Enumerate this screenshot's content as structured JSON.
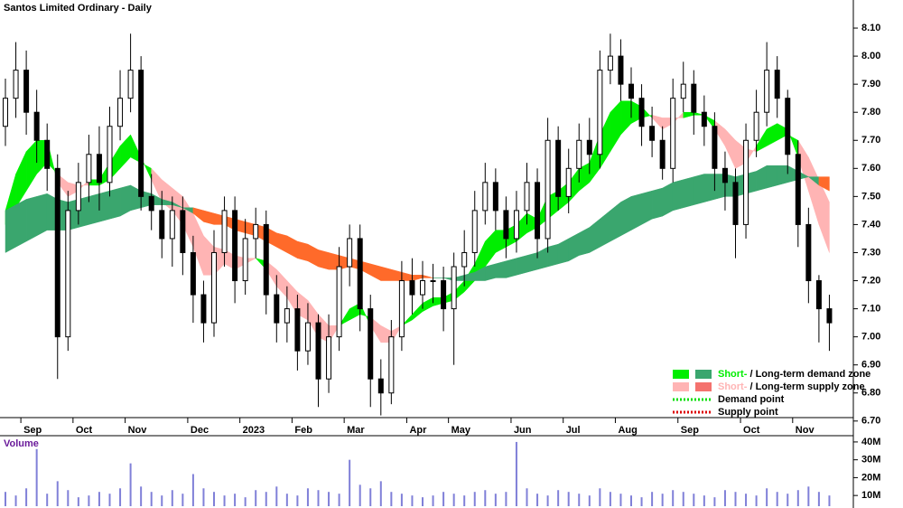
{
  "chart_data": {
    "type": "candlestick",
    "title": "Santos Limited Ordinary - Daily",
    "categories": [
      null,
      null,
      "Sep",
      null,
      null,
      null,
      null,
      "Oct",
      null,
      null,
      null,
      null,
      "Nov",
      null,
      null,
      null,
      null,
      null,
      "Dec",
      null,
      null,
      null,
      null,
      "2023",
      null,
      null,
      null,
      null,
      "Feb",
      null,
      null,
      null,
      null,
      "Mar",
      null,
      null,
      null,
      null,
      null,
      "Apr",
      null,
      null,
      null,
      "May",
      null,
      null,
      null,
      null,
      null,
      "Jun",
      null,
      null,
      null,
      null,
      "Jul",
      null,
      null,
      null,
      null,
      "Aug",
      null,
      null,
      null,
      null,
      null,
      "Sep",
      null,
      null,
      null,
      null,
      null,
      "Oct",
      null,
      null,
      null,
      null,
      "Nov",
      null,
      null,
      null
    ],
    "open": [
      7.75,
      7.85,
      7.95,
      7.8,
      7.7,
      7.6,
      7.0,
      7.45,
      7.55,
      7.65,
      7.55,
      7.75,
      7.85,
      7.95,
      7.5,
      7.45,
      7.35,
      7.45,
      7.3,
      7.15,
      7.05,
      7.3,
      7.45,
      7.2,
      7.35,
      7.4,
      7.15,
      7.05,
      7.1,
      6.95,
      7.05,
      6.85,
      7.0,
      7.25,
      7.35,
      7.1,
      6.85,
      6.8,
      7.0,
      7.2,
      7.15,
      7.2,
      7.2,
      7.1,
      7.25,
      7.3,
      7.45,
      7.55,
      7.45,
      7.35,
      7.45,
      7.55,
      7.35,
      7.7,
      7.5,
      7.6,
      7.7,
      7.65,
      7.95,
      8.0,
      7.9,
      7.85,
      7.75,
      7.7,
      7.6,
      7.85,
      7.9,
      7.8,
      7.75,
      7.6,
      7.55,
      7.4,
      7.7,
      7.8,
      7.95,
      7.85,
      7.65,
      7.4,
      7.2,
      7.1
    ],
    "high": [
      7.92,
      8.05,
      8.02,
      7.88,
      7.76,
      7.65,
      7.52,
      7.62,
      7.72,
      7.75,
      7.82,
      7.95,
      8.08,
      8.0,
      7.58,
      7.52,
      7.5,
      7.5,
      7.36,
      7.2,
      7.38,
      7.5,
      7.5,
      7.42,
      7.46,
      7.45,
      7.22,
      7.18,
      7.15,
      7.12,
      7.08,
      7.08,
      7.32,
      7.4,
      7.4,
      7.15,
      6.92,
      7.06,
      7.27,
      7.28,
      7.27,
      7.26,
      7.25,
      7.3,
      7.38,
      7.52,
      7.62,
      7.6,
      7.5,
      7.52,
      7.62,
      7.6,
      7.78,
      7.75,
      7.67,
      7.76,
      7.78,
      8.02,
      8.08,
      8.06,
      7.96,
      7.9,
      7.82,
      7.75,
      7.92,
      7.98,
      7.95,
      7.86,
      7.8,
      7.66,
      7.6,
      7.76,
      7.88,
      8.05,
      8.0,
      7.88,
      7.7,
      7.46,
      7.22,
      7.15
    ],
    "low": [
      7.68,
      7.78,
      7.72,
      7.62,
      7.52,
      6.85,
      6.95,
      7.4,
      7.48,
      7.45,
      7.5,
      7.7,
      7.8,
      7.45,
      7.38,
      7.28,
      7.25,
      7.22,
      7.05,
      6.98,
      7.0,
      7.25,
      7.12,
      7.15,
      7.28,
      7.08,
      6.98,
      6.98,
      6.88,
      6.9,
      6.75,
      6.8,
      6.95,
      7.18,
      7.02,
      6.75,
      6.72,
      6.76,
      6.95,
      7.08,
      7.1,
      7.12,
      7.02,
      6.9,
      7.18,
      7.25,
      7.4,
      7.38,
      7.28,
      7.3,
      7.4,
      7.28,
      7.3,
      7.45,
      7.44,
      7.55,
      7.58,
      7.6,
      7.9,
      7.84,
      7.78,
      7.68,
      7.64,
      7.56,
      7.55,
      7.8,
      7.72,
      7.68,
      7.52,
      7.45,
      7.28,
      7.35,
      7.64,
      7.75,
      7.78,
      7.58,
      7.32,
      7.12,
      6.98,
      6.95
    ],
    "close": [
      7.85,
      7.95,
      7.8,
      7.7,
      7.6,
      7.0,
      7.45,
      7.55,
      7.65,
      7.55,
      7.75,
      7.85,
      7.95,
      7.5,
      7.45,
      7.35,
      7.45,
      7.3,
      7.15,
      7.05,
      7.3,
      7.45,
      7.2,
      7.35,
      7.4,
      7.15,
      7.05,
      7.1,
      6.95,
      7.05,
      6.85,
      7.0,
      7.25,
      7.35,
      7.1,
      6.85,
      6.8,
      7.0,
      7.2,
      7.15,
      7.2,
      7.2,
      7.1,
      7.25,
      7.3,
      7.45,
      7.55,
      7.45,
      7.35,
      7.45,
      7.55,
      7.35,
      7.7,
      7.5,
      7.6,
      7.7,
      7.65,
      7.95,
      8.0,
      7.9,
      7.85,
      7.75,
      7.7,
      7.6,
      7.85,
      7.9,
      7.8,
      7.75,
      7.6,
      7.55,
      7.4,
      7.7,
      7.8,
      7.95,
      7.85,
      7.65,
      7.4,
      7.2,
      7.1,
      7.05
    ],
    "zones": [
      {
        "fast": [
          7.45,
          7.58,
          7.66,
          7.7,
          7.7,
          7.55,
          7.5,
          7.52,
          7.56,
          7.56,
          7.62,
          7.68,
          7.72,
          7.64,
          7.56,
          7.48,
          7.45,
          7.4,
          7.32,
          7.22,
          7.22,
          7.26,
          7.24,
          7.26,
          7.28,
          7.24,
          7.18,
          7.14,
          7.08,
          7.06,
          7.0,
          6.98,
          7.04,
          7.1,
          7.12,
          7.04,
          6.98,
          6.98,
          7.04,
          7.08,
          7.12,
          7.14,
          7.14,
          7.16,
          7.2,
          7.26,
          7.34,
          7.38,
          7.38,
          7.4,
          7.44,
          7.42,
          7.5,
          7.52,
          7.55,
          7.6,
          7.62,
          7.72,
          7.8,
          7.84,
          7.84,
          7.82,
          7.78,
          7.74,
          7.76,
          7.8,
          7.8,
          7.79,
          7.74,
          7.68,
          7.6,
          7.62,
          7.68,
          7.74,
          7.76,
          7.74,
          7.64,
          7.52,
          7.4,
          7.3
        ],
        "slow": [
          7.4,
          7.46,
          7.52,
          7.58,
          7.62,
          7.58,
          7.55,
          7.54,
          7.54,
          7.54,
          7.56,
          7.6,
          7.64,
          7.62,
          7.6,
          7.56,
          7.53,
          7.5,
          7.44,
          7.36,
          7.32,
          7.31,
          7.29,
          7.28,
          7.28,
          7.27,
          7.24,
          7.2,
          7.16,
          7.13,
          7.08,
          7.04,
          7.04,
          7.06,
          7.08,
          7.07,
          7.04,
          7.02,
          7.04,
          7.06,
          7.09,
          7.11,
          7.12,
          7.13,
          7.16,
          7.2,
          7.25,
          7.3,
          7.32,
          7.34,
          7.37,
          7.39,
          7.42,
          7.45,
          7.48,
          7.52,
          7.55,
          7.6,
          7.66,
          7.72,
          7.76,
          7.78,
          7.79,
          7.78,
          7.78,
          7.78,
          7.79,
          7.79,
          7.77,
          7.74,
          7.7,
          7.67,
          7.66,
          7.68,
          7.7,
          7.72,
          7.7,
          7.64,
          7.56,
          7.48
        ],
        "demand_color": "#00ee00",
        "supply_color": "#ffb4b4"
      },
      {
        "fast": [
          7.45,
          7.47,
          7.49,
          7.5,
          7.51,
          7.49,
          7.48,
          7.49,
          7.5,
          7.51,
          7.52,
          7.53,
          7.54,
          7.52,
          7.51,
          7.49,
          7.48,
          7.46,
          7.44,
          7.41,
          7.4,
          7.4,
          7.38,
          7.37,
          7.36,
          7.34,
          7.32,
          7.3,
          7.28,
          7.27,
          7.25,
          7.24,
          7.24,
          7.25,
          7.24,
          7.22,
          7.2,
          7.2,
          7.2,
          7.2,
          7.21,
          7.21,
          7.21,
          7.21,
          7.22,
          7.23,
          7.25,
          7.26,
          7.27,
          7.28,
          7.29,
          7.3,
          7.32,
          7.33,
          7.35,
          7.37,
          7.39,
          7.42,
          7.45,
          7.48,
          7.5,
          7.51,
          7.52,
          7.53,
          7.55,
          7.56,
          7.57,
          7.58,
          7.58,
          7.58,
          7.57,
          7.58,
          7.59,
          7.61,
          7.61,
          7.61,
          7.59,
          7.57,
          7.54,
          7.52
        ],
        "slow": [
          7.3,
          7.32,
          7.34,
          7.36,
          7.38,
          7.38,
          7.38,
          7.39,
          7.4,
          7.41,
          7.42,
          7.43,
          7.45,
          7.46,
          7.47,
          7.47,
          7.47,
          7.46,
          7.46,
          7.45,
          7.44,
          7.43,
          7.42,
          7.41,
          7.4,
          7.39,
          7.37,
          7.36,
          7.34,
          7.33,
          7.31,
          7.3,
          7.29,
          7.28,
          7.27,
          7.26,
          7.25,
          7.24,
          7.23,
          7.22,
          7.22,
          7.21,
          7.21,
          7.2,
          7.2,
          7.2,
          7.2,
          7.21,
          7.21,
          7.22,
          7.23,
          7.24,
          7.25,
          7.26,
          7.27,
          7.29,
          7.3,
          7.32,
          7.34,
          7.36,
          7.38,
          7.4,
          7.42,
          7.43,
          7.45,
          7.46,
          7.47,
          7.48,
          7.49,
          7.5,
          7.5,
          7.51,
          7.52,
          7.53,
          7.54,
          7.55,
          7.56,
          7.57,
          7.57,
          7.57
        ],
        "demand_color": "#3aa66e",
        "supply_color": "#ff6a2a"
      }
    ],
    "ylim": [
      6.68,
      8.2
    ],
    "yticks": [
      {
        "value": 6.7,
        "label": "6.70"
      },
      {
        "value": 6.8,
        "label": "6.80"
      },
      {
        "value": 6.9,
        "label": "6.90"
      },
      {
        "value": 7.0,
        "label": "7.00"
      },
      {
        "value": 7.1,
        "label": "7.10"
      },
      {
        "value": 7.2,
        "label": "7.20"
      },
      {
        "value": 7.3,
        "label": "7.30"
      },
      {
        "value": 7.4,
        "label": "7.40"
      },
      {
        "value": 7.5,
        "label": "7.50"
      },
      {
        "value": 7.6,
        "label": "7.60"
      },
      {
        "value": 7.7,
        "label": "7.70"
      },
      {
        "value": 7.8,
        "label": "7.80"
      },
      {
        "value": 7.9,
        "label": "7.90"
      },
      {
        "value": 8.0,
        "label": "8.00"
      },
      {
        "value": 8.1,
        "label": "8.10"
      }
    ],
    "volume": {
      "title": "Volume",
      "color": "#8080d8",
      "values": [
        12,
        10,
        14,
        36,
        11,
        18,
        13,
        9,
        10,
        12,
        11,
        14,
        28,
        15,
        12,
        10,
        13,
        11,
        22,
        14,
        12,
        10,
        11,
        9,
        13,
        12,
        15,
        11,
        10,
        14,
        13,
        12,
        11,
        30,
        16,
        14,
        18,
        12,
        11,
        10,
        9,
        10,
        12,
        11,
        10,
        12,
        13,
        11,
        12,
        40,
        14,
        11,
        10,
        13,
        12,
        11,
        10,
        14,
        12,
        11,
        10,
        9,
        12,
        11,
        13,
        12,
        11,
        10,
        9,
        13,
        12,
        11,
        10,
        14,
        12,
        11,
        13,
        15,
        12,
        10
      ],
      "ylim": [
        4,
        43
      ],
      "yticks": [
        {
          "value": 10,
          "label": "10M"
        },
        {
          "value": 20,
          "label": "20M"
        },
        {
          "value": 30,
          "label": "30M"
        },
        {
          "value": 40,
          "label": "40M"
        }
      ]
    },
    "legend": [
      {
        "short": "Short-",
        "sep": " / ",
        "long": "Long-term demand zone",
        "short_color": "#00ee00",
        "long_color": "#3aa66e"
      },
      {
        "short": "Short-",
        "sep": " / ",
        "long": "Long-term supply zone",
        "short_color": "#ffb4b4",
        "long_color": "#f4726e"
      },
      {
        "label": "Demand point",
        "color": "#00dd00"
      },
      {
        "label": "Supply point",
        "color": "#dd0000"
      }
    ]
  }
}
